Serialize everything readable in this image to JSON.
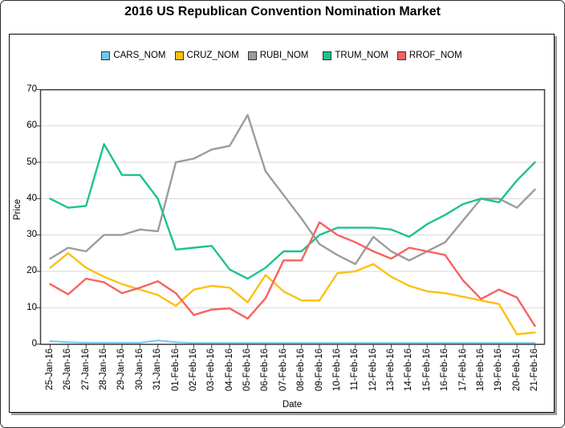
{
  "title": "2016 US Republican Convention Nomination Market",
  "colors": {
    "grid": "#d9d9d9",
    "plot_border": "#3f3f3f",
    "tick": "#3f3f3f",
    "cars": "#74C7E8",
    "cruz": "#FCC011",
    "rubi": "#9C9C9C",
    "trum": "#1EC28E",
    "rrof": "#F96161"
  },
  "chart_data": {
    "type": "line",
    "title": "2016 US Republican Convention Nomination Market",
    "xlabel": "Date",
    "ylabel": "Price",
    "ylim": [
      0,
      70
    ],
    "y_ticks": [
      0,
      10,
      20,
      30,
      40,
      50,
      60,
      70
    ],
    "grid": "horizontal",
    "legend_position": "top",
    "categories": [
      "25-Jan-16",
      "26-Jan-16",
      "27-Jan-16",
      "28-Jan-16",
      "29-Jan-16",
      "30-Jan-16",
      "31-Jan-16",
      "01-Feb-16",
      "02-Feb-16",
      "03-Feb-16",
      "04-Feb-16",
      "05-Feb-16",
      "06-Feb-16",
      "07-Feb-16",
      "08-Feb-16",
      "09-Feb-16",
      "10-Feb-16",
      "11-Feb-16",
      "12-Feb-16",
      "13-Feb-16",
      "14-Feb-16",
      "15-Feb-16",
      "16-Feb-16",
      "17-Feb-16",
      "18-Feb-16",
      "19-Feb-16",
      "20-Feb-16",
      "21-Feb-16"
    ],
    "series": [
      {
        "name": "CARS_NOM",
        "color_key": "cars",
        "values": [
          0.8,
          0.5,
          0.4,
          0.4,
          0.4,
          0.4,
          1.0,
          0.5,
          0.3,
          0.3,
          0.3,
          0.3,
          0.3,
          0.3,
          0.3,
          0.3,
          0.3,
          0.3,
          0.3,
          0.3,
          0.3,
          0.3,
          0.3,
          0.3,
          0.3,
          0.3,
          0.3,
          0.3
        ]
      },
      {
        "name": "CRUZ_NOM",
        "color_key": "cruz",
        "values": [
          21,
          25,
          21,
          18.5,
          16.5,
          15,
          13.5,
          10.5,
          15,
          16,
          15.5,
          11.5,
          19,
          14.5,
          12,
          12,
          19.5,
          20,
          22,
          18.5,
          16,
          14.5,
          14,
          13,
          12,
          11,
          2.7,
          3.2
        ]
      },
      {
        "name": "RUBI_NOM",
        "color_key": "rubi",
        "values": [
          23.5,
          26.5,
          25.5,
          30,
          30,
          31.5,
          31,
          50,
          51,
          53.5,
          54.5,
          63,
          47.5,
          41,
          34.5,
          27.5,
          24.5,
          22,
          29.5,
          25.5,
          23,
          25.5,
          28,
          34,
          40,
          40,
          37.5,
          42.5
        ]
      },
      {
        "name": "TRUM_NOM",
        "color_key": "trum",
        "values": [
          40,
          37.5,
          38,
          55,
          46.5,
          46.5,
          40,
          26,
          26.5,
          27,
          20.5,
          18,
          21,
          25.5,
          25.5,
          30,
          32,
          32,
          32,
          31.5,
          29.5,
          33,
          35.5,
          38.5,
          40,
          39,
          45,
          50
        ]
      },
      {
        "name": "RROF_NOM",
        "color_key": "rrof",
        "values": [
          16.5,
          13.7,
          18,
          17,
          14,
          15.5,
          17.3,
          14,
          8,
          9.5,
          9.8,
          7,
          12.6,
          23,
          23,
          33.5,
          30,
          28,
          25.5,
          23.5,
          26.5,
          25.5,
          24.5,
          17.5,
          12.4,
          15,
          12.8,
          5
        ]
      }
    ]
  }
}
